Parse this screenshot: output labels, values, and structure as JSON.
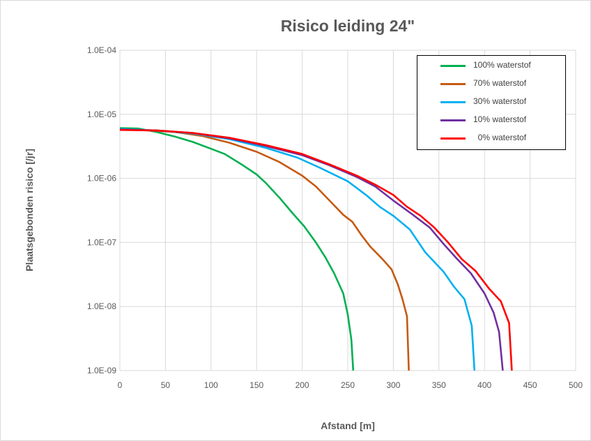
{
  "chart_data": {
    "type": "line",
    "title": "Risico leiding 24\"",
    "xlabel": "Afstand  [m]",
    "ylabel": "Plaatsgebonden risico  [/jr]",
    "xlim": [
      0,
      500
    ],
    "ylim": [
      1e-09,
      0.0001
    ],
    "yscale": "log",
    "grid": true,
    "legend_position": "top-right",
    "x_ticks": [
      "0",
      "50",
      "100",
      "150",
      "200",
      "250",
      "300",
      "350",
      "400",
      "450",
      "500"
    ],
    "x_tick_values": [
      0,
      50,
      100,
      150,
      200,
      250,
      300,
      350,
      400,
      450,
      500
    ],
    "y_ticks": [
      "1.0E-04",
      "1.0E-05",
      "1.0E-06",
      "1.0E-07",
      "1.0E-08",
      "1.0E-09"
    ],
    "y_tick_values": [
      0.0001,
      1e-05,
      1e-06,
      1e-07,
      1e-08,
      1e-09
    ],
    "series": [
      {
        "name": "100% waterstof",
        "color": "#00b050",
        "points": [
          [
            0,
            6.1e-06
          ],
          [
            20,
            6e-06
          ],
          [
            40,
            5.3e-06
          ],
          [
            60,
            4.5e-06
          ],
          [
            80,
            3.7e-06
          ],
          [
            100,
            2.9e-06
          ],
          [
            115,
            2.4e-06
          ],
          [
            135,
            1.6e-06
          ],
          [
            150,
            1.15e-06
          ],
          [
            160,
            8.5e-07
          ],
          [
            175,
            5e-07
          ],
          [
            190,
            2.8e-07
          ],
          [
            202,
            1.8e-07
          ],
          [
            215,
            1e-07
          ],
          [
            225,
            6e-08
          ],
          [
            235,
            3.3e-08
          ],
          [
            245,
            1.6e-08
          ],
          [
            250,
            7.5e-09
          ],
          [
            254,
            3e-09
          ],
          [
            256,
            1e-09
          ]
        ]
      },
      {
        "name": "70% waterstof",
        "color": "#c55a11",
        "points": [
          [
            0,
            5.8e-06
          ],
          [
            30,
            5.6e-06
          ],
          [
            60,
            5.3e-06
          ],
          [
            90,
            4.6e-06
          ],
          [
            120,
            3.6e-06
          ],
          [
            150,
            2.6e-06
          ],
          [
            175,
            1.8e-06
          ],
          [
            200,
            1.1e-06
          ],
          [
            215,
            7.5e-07
          ],
          [
            230,
            4.5e-07
          ],
          [
            245,
            2.7e-07
          ],
          [
            255,
            2.1e-07
          ],
          [
            265,
            1.3e-07
          ],
          [
            275,
            8.5e-08
          ],
          [
            288,
            5.5e-08
          ],
          [
            298,
            3.8e-08
          ],
          [
            305,
            2.2e-08
          ],
          [
            310,
            1.3e-08
          ],
          [
            315,
            7e-09
          ],
          [
            317,
            1e-09
          ]
        ]
      },
      {
        "name": "30% waterstof",
        "color": "#00b0f0",
        "points": [
          [
            0,
            5.9e-06
          ],
          [
            40,
            5.6e-06
          ],
          [
            80,
            5e-06
          ],
          [
            120,
            4.1e-06
          ],
          [
            160,
            3e-06
          ],
          [
            195,
            2.1e-06
          ],
          [
            220,
            1.45e-06
          ],
          [
            250,
            9e-07
          ],
          [
            270,
            5.5e-07
          ],
          [
            285,
            3.6e-07
          ],
          [
            300,
            2.6e-07
          ],
          [
            318,
            1.6e-07
          ],
          [
            335,
            7e-08
          ],
          [
            355,
            3.5e-08
          ],
          [
            367,
            2e-08
          ],
          [
            378,
            1.3e-08
          ],
          [
            386,
            5e-09
          ],
          [
            389,
            1e-09
          ]
        ]
      },
      {
        "name": "10% waterstof",
        "color": "#7030a0",
        "points": [
          [
            0,
            5.8e-06
          ],
          [
            40,
            5.6e-06
          ],
          [
            80,
            5.1e-06
          ],
          [
            120,
            4.2e-06
          ],
          [
            160,
            3.2e-06
          ],
          [
            200,
            2.3e-06
          ],
          [
            230,
            1.6e-06
          ],
          [
            260,
            1.05e-06
          ],
          [
            280,
            7.5e-07
          ],
          [
            300,
            4.5e-07
          ],
          [
            320,
            2.8e-07
          ],
          [
            340,
            1.7e-07
          ],
          [
            355,
            9.5e-08
          ],
          [
            370,
            5.5e-08
          ],
          [
            385,
            3.3e-08
          ],
          [
            400,
            1.6e-08
          ],
          [
            410,
            8e-09
          ],
          [
            416,
            4e-09
          ],
          [
            420,
            1e-09
          ]
        ]
      },
      {
        "name": "  0% waterstof",
        "color": "#ff0000",
        "points": [
          [
            0,
            5.7e-06
          ],
          [
            40,
            5.6e-06
          ],
          [
            80,
            5.1e-06
          ],
          [
            120,
            4.3e-06
          ],
          [
            160,
            3.3e-06
          ],
          [
            200,
            2.4e-06
          ],
          [
            230,
            1.65e-06
          ],
          [
            260,
            1.1e-06
          ],
          [
            280,
            8e-07
          ],
          [
            300,
            5.5e-07
          ],
          [
            315,
            3.6e-07
          ],
          [
            330,
            2.6e-07
          ],
          [
            345,
            1.7e-07
          ],
          [
            360,
            1e-07
          ],
          [
            375,
            5.5e-08
          ],
          [
            390,
            3.6e-08
          ],
          [
            405,
            1.9e-08
          ],
          [
            418,
            1.2e-08
          ],
          [
            427,
            5.5e-09
          ],
          [
            430,
            1e-09
          ]
        ]
      }
    ]
  }
}
